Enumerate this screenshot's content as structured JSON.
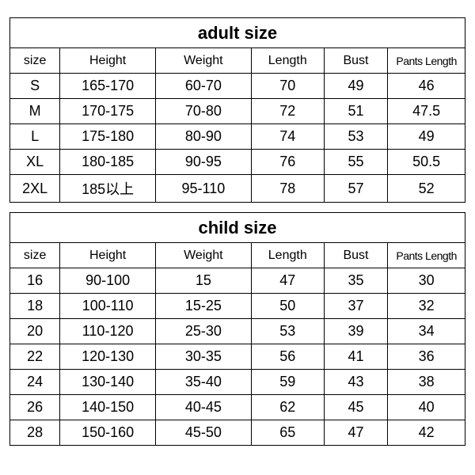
{
  "adult_table": {
    "title": "adult size",
    "columns": [
      "size",
      "Height",
      "Weight",
      "Length",
      "Bust",
      "Pants Length"
    ],
    "rows": [
      [
        "S",
        "165-170",
        "60-70",
        "70",
        "49",
        "46"
      ],
      [
        "M",
        "170-175",
        "70-80",
        "72",
        "51",
        "47.5"
      ],
      [
        "L",
        "175-180",
        "80-90",
        "74",
        "53",
        "49"
      ],
      [
        "XL",
        "180-185",
        "90-95",
        "76",
        "55",
        "50.5"
      ],
      [
        "2XL",
        "185以上",
        "95-110",
        "78",
        "57",
        "52"
      ]
    ]
  },
  "child_table": {
    "title": "child size",
    "columns": [
      "size",
      "Height",
      "Weight",
      "Length",
      "Bust",
      "Pants Length"
    ],
    "rows": [
      [
        "16",
        "90-100",
        "15",
        "47",
        "35",
        "30"
      ],
      [
        "18",
        "100-110",
        "15-25",
        "50",
        "37",
        "32"
      ],
      [
        "20",
        "110-120",
        "25-30",
        "53",
        "39",
        "34"
      ],
      [
        "22",
        "120-130",
        "30-35",
        "56",
        "41",
        "36"
      ],
      [
        "24",
        "130-140",
        "35-40",
        "59",
        "43",
        "38"
      ],
      [
        "26",
        "140-150",
        "40-45",
        "62",
        "45",
        "40"
      ],
      [
        "28",
        "150-160",
        "45-50",
        "65",
        "47",
        "42"
      ]
    ]
  },
  "style": {
    "border_color": "#000000",
    "background_color": "#ffffff",
    "title_fontsize": 22,
    "header_fontsize": 16,
    "cell_fontsize": 18,
    "font_family": "Arial, SimSun, sans-serif"
  }
}
